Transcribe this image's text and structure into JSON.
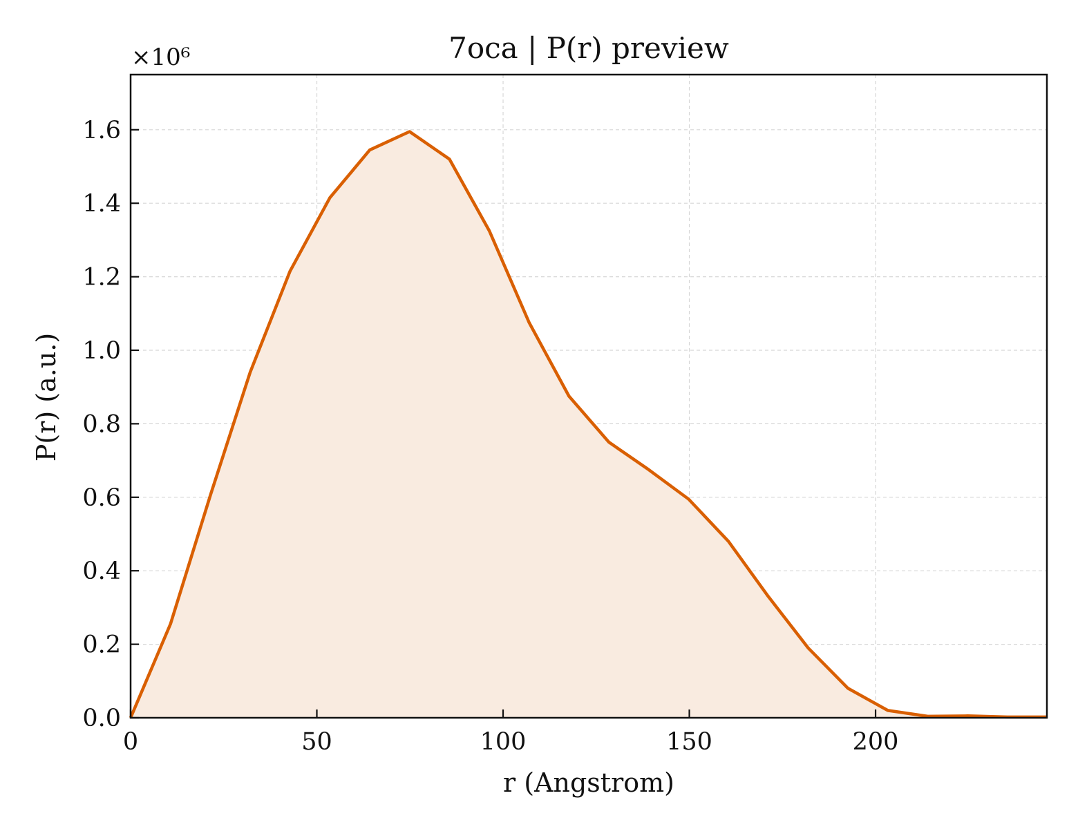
{
  "chart_data": {
    "type": "area",
    "title": "7oca | P(r) preview",
    "xlabel": "r (Angstrom)",
    "ylabel": "P(r) (a.u.)",
    "y_multiplier": "×10⁶",
    "xlim": [
      0,
      246
    ],
    "ylim": [
      0,
      1.75
    ],
    "xticks": [
      0,
      50,
      100,
      150,
      200
    ],
    "yticks": [
      0.0,
      0.2,
      0.4,
      0.6,
      0.8,
      1.0,
      1.2,
      1.4,
      1.6
    ],
    "grid": true,
    "colors": {
      "line": "#d95f02",
      "fill": "#f9ebe0",
      "grid": "#d6d6d6"
    },
    "series": [
      {
        "x": [
          0,
          10.7,
          21.4,
          32.1,
          42.8,
          53.5,
          64.2,
          74.9,
          85.6,
          96.3,
          107.0,
          117.7,
          128.4,
          139.1,
          149.8,
          160.5,
          171.2,
          181.9,
          192.6,
          203.3,
          214.0,
          224.7,
          235.4,
          246.0
        ],
        "values": [
          0.0,
          0.255,
          0.605,
          0.94,
          1.215,
          1.415,
          1.545,
          1.595,
          1.52,
          1.325,
          1.075,
          0.875,
          0.75,
          0.675,
          0.595,
          0.48,
          0.33,
          0.19,
          0.08,
          0.02,
          0.004,
          0.005,
          0.002,
          0.002
        ]
      }
    ]
  }
}
